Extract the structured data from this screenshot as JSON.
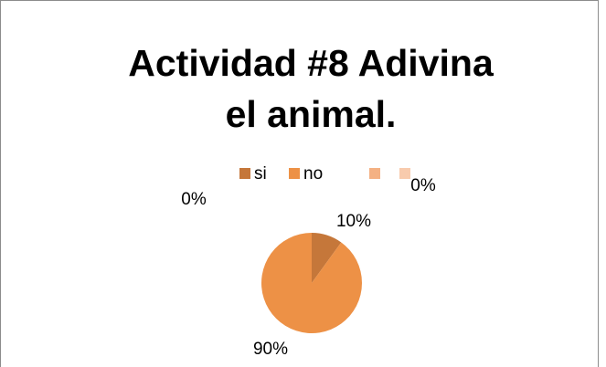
{
  "chart_data": {
    "type": "pie",
    "title": "Actividad #8 Adivina el animal.",
    "categories": [
      "si",
      "no",
      null,
      null
    ],
    "values": [
      10,
      90,
      0,
      0
    ],
    "value_labels": [
      "10%",
      "90%",
      "0%",
      "0%"
    ],
    "colors": [
      "#c5773a",
      "#ed9146",
      "#f4b183",
      "#f8cbad"
    ],
    "legend": "top"
  }
}
